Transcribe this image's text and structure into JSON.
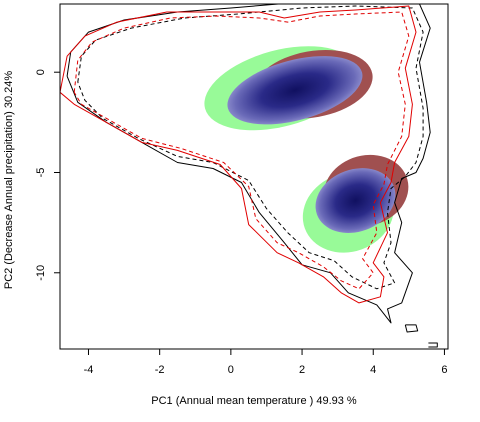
{
  "chart_data": {
    "type": "contour-density",
    "xlabel": "PC1 (Annual mean temperature ) 49.93 %",
    "ylabel": "PC2 (Decrease Annual precipitation) 30.24%",
    "xlim": [
      -4.8,
      6.1
    ],
    "ylim": [
      -13.8,
      3.4
    ],
    "xticks": [
      -4,
      -2,
      0,
      2,
      4,
      6
    ],
    "yticks": [
      0,
      -5,
      -10
    ],
    "colors": {
      "overlap": "#1a1a7a",
      "green_niche": "#98fa98",
      "red_niche": "#a05050",
      "contour_black": "#000000",
      "contour_red": "#e00000"
    },
    "niches": [
      {
        "cx": 1.4,
        "cy": -0.8,
        "rx": 2.2,
        "ry": 1.9,
        "rot": -15,
        "color": "green"
      },
      {
        "cx": 2.3,
        "cy": -0.6,
        "rx": 1.7,
        "ry": 1.65,
        "rot": -10,
        "color": "red"
      },
      {
        "cx": 1.8,
        "cy": -0.9,
        "rx": 1.95,
        "ry": 1.5,
        "rot": -15,
        "color": "blue"
      },
      {
        "cx": 3.3,
        "cy": -7.0,
        "rx": 1.3,
        "ry": 1.95,
        "rot": -20,
        "color": "green"
      },
      {
        "cx": 3.8,
        "cy": -5.9,
        "rx": 1.2,
        "ry": 1.75,
        "rot": -15,
        "color": "red"
      },
      {
        "cx": 3.5,
        "cy": -6.4,
        "rx": 1.15,
        "ry": 1.55,
        "rot": -20,
        "color": "blue"
      }
    ],
    "contours": [
      {
        "color": "black",
        "dash": "solid",
        "points": [
          [
            -4.6,
            -0.2
          ],
          [
            -4.5,
            1.0
          ],
          [
            -4.0,
            2.0
          ],
          [
            -3.0,
            2.6
          ],
          [
            -1.5,
            3.0
          ],
          [
            0.0,
            3.2
          ],
          [
            2.0,
            3.5
          ],
          [
            3.5,
            3.5
          ],
          [
            5.3,
            3.4
          ],
          [
            5.6,
            2.2
          ],
          [
            5.3,
            0.5
          ],
          [
            5.5,
            -1.5
          ],
          [
            5.6,
            -3.0
          ],
          [
            5.4,
            -4.3
          ],
          [
            5.2,
            -5.0
          ],
          [
            4.8,
            -5.3
          ],
          [
            4.6,
            -6.5
          ],
          [
            4.8,
            -7.5
          ],
          [
            4.6,
            -9.0
          ],
          [
            5.1,
            -10.0
          ],
          [
            4.8,
            -11.5
          ],
          [
            4.4,
            -11.8
          ],
          [
            4.5,
            -12.5
          ],
          [
            4.1,
            -11.6
          ],
          [
            3.3,
            -11.0
          ],
          [
            2.8,
            -10.0
          ],
          [
            2.0,
            -9.6
          ],
          [
            1.5,
            -8.5
          ],
          [
            0.8,
            -7.0
          ],
          [
            0.3,
            -5.5
          ],
          [
            -0.5,
            -4.8
          ],
          [
            -1.5,
            -4.5
          ],
          [
            -2.5,
            -3.5
          ],
          [
            -3.5,
            -2.5
          ],
          [
            -4.3,
            -1.5
          ],
          [
            -4.6,
            -0.2
          ]
        ]
      },
      {
        "color": "black",
        "dash": "dashed",
        "points": [
          [
            -4.3,
            -0.5
          ],
          [
            -4.2,
            0.8
          ],
          [
            -3.8,
            1.6
          ],
          [
            -2.8,
            2.2
          ],
          [
            -1.3,
            2.7
          ],
          [
            0.2,
            2.9
          ],
          [
            2.0,
            3.2
          ],
          [
            3.5,
            3.3
          ],
          [
            5.1,
            3.2
          ],
          [
            5.4,
            2.0
          ],
          [
            5.2,
            0.2
          ],
          [
            5.4,
            -1.8
          ],
          [
            5.4,
            -3.2
          ],
          [
            5.2,
            -4.5
          ],
          [
            4.9,
            -5.2
          ],
          [
            4.5,
            -5.8
          ],
          [
            4.4,
            -7.0
          ],
          [
            4.5,
            -8.5
          ],
          [
            4.3,
            -9.5
          ],
          [
            4.6,
            -10.5
          ],
          [
            4.1,
            -10.8
          ],
          [
            3.4,
            -10.2
          ],
          [
            2.9,
            -9.4
          ],
          [
            2.2,
            -9.0
          ],
          [
            1.6,
            -8.0
          ],
          [
            1.0,
            -6.8
          ],
          [
            0.5,
            -5.4
          ],
          [
            -0.5,
            -4.5
          ],
          [
            -1.5,
            -4.2
          ],
          [
            -2.6,
            -3.3
          ],
          [
            -3.6,
            -2.3
          ],
          [
            -4.1,
            -1.4
          ],
          [
            -4.3,
            -0.5
          ]
        ]
      },
      {
        "color": "red",
        "dash": "solid",
        "points": [
          [
            -4.8,
            -1.0
          ],
          [
            -4.6,
            0.8
          ],
          [
            -4.1,
            1.8
          ],
          [
            -3.2,
            2.5
          ],
          [
            -1.8,
            3.0
          ],
          [
            -0.5,
            3.0
          ],
          [
            0.8,
            3.0
          ],
          [
            1.5,
            2.7
          ],
          [
            2.5,
            3.0
          ],
          [
            3.5,
            3.1
          ],
          [
            5.0,
            3.3
          ],
          [
            5.2,
            2.0
          ],
          [
            4.9,
            0.2
          ],
          [
            5.1,
            -1.6
          ],
          [
            5.0,
            -3.2
          ],
          [
            4.6,
            -4.5
          ],
          [
            4.5,
            -5.5
          ],
          [
            4.2,
            -6.5
          ],
          [
            4.4,
            -8.0
          ],
          [
            4.0,
            -9.5
          ],
          [
            4.3,
            -10.2
          ],
          [
            4.2,
            -11.2
          ],
          [
            3.6,
            -11.5
          ],
          [
            3.1,
            -11.0
          ],
          [
            2.6,
            -10.2
          ],
          [
            1.9,
            -9.5
          ],
          [
            1.3,
            -9.0
          ],
          [
            0.5,
            -7.6
          ],
          [
            0.3,
            -5.8
          ],
          [
            -0.3,
            -4.6
          ],
          [
            -1.5,
            -3.9
          ],
          [
            -2.5,
            -3.5
          ],
          [
            -3.6,
            -2.4
          ],
          [
            -4.4,
            -1.6
          ],
          [
            -4.8,
            -1.0
          ]
        ]
      },
      {
        "color": "red",
        "dash": "dashed",
        "points": [
          [
            -4.4,
            -1.0
          ],
          [
            -4.3,
            0.6
          ],
          [
            -3.9,
            1.5
          ],
          [
            -3.0,
            2.2
          ],
          [
            -1.7,
            2.7
          ],
          [
            -0.4,
            2.8
          ],
          [
            0.8,
            2.7
          ],
          [
            1.6,
            2.5
          ],
          [
            2.5,
            2.8
          ],
          [
            3.5,
            2.9
          ],
          [
            4.8,
            3.0
          ],
          [
            5.0,
            1.8
          ],
          [
            4.7,
            0.0
          ],
          [
            4.9,
            -1.6
          ],
          [
            4.8,
            -3.2
          ],
          [
            4.4,
            -4.6
          ],
          [
            4.3,
            -5.6
          ],
          [
            4.0,
            -6.6
          ],
          [
            4.1,
            -8.0
          ],
          [
            3.7,
            -9.3
          ],
          [
            4.0,
            -10.0
          ],
          [
            3.6,
            -10.8
          ],
          [
            3.1,
            -10.4
          ],
          [
            2.6,
            -9.7
          ],
          [
            1.9,
            -9.0
          ],
          [
            1.3,
            -8.5
          ],
          [
            0.7,
            -7.3
          ],
          [
            0.5,
            -5.7
          ],
          [
            -0.2,
            -4.5
          ],
          [
            -1.4,
            -3.8
          ],
          [
            -2.5,
            -3.3
          ],
          [
            -3.5,
            -2.3
          ],
          [
            -4.2,
            -1.6
          ],
          [
            -4.4,
            -1.0
          ]
        ]
      },
      {
        "color": "black",
        "dash": "solid",
        "points": [
          [
            4.9,
            -12.6
          ],
          [
            5.2,
            -12.6
          ],
          [
            5.25,
            -12.9
          ],
          [
            4.95,
            -12.95
          ],
          [
            4.9,
            -12.6
          ]
        ]
      },
      {
        "color": "black",
        "dash": "solid",
        "points": [
          [
            5.55,
            -13.5
          ],
          [
            5.8,
            -13.5
          ],
          [
            5.8,
            -13.7
          ],
          [
            5.55,
            -13.7
          ]
        ]
      }
    ]
  }
}
